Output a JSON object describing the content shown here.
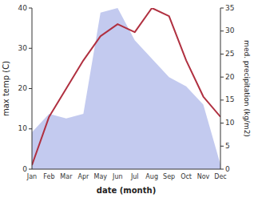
{
  "chart_data": {
    "type": "line",
    "categories": [
      "Jan",
      "Feb",
      "Mar",
      "Apr",
      "May",
      "Jun",
      "Jul",
      "Aug",
      "Sep",
      "Oct",
      "Nov",
      "Dec"
    ],
    "xlabel": "date (month)",
    "ylabel": "max temp (C)",
    "y2label": "med. precipitation (kg/m2)",
    "series": [
      {
        "type": "area",
        "axis": "y2",
        "color": "#aab4e8",
        "values": [
          8,
          12,
          11,
          12,
          34,
          35,
          28,
          24,
          20,
          18,
          14,
          1
        ]
      },
      {
        "type": "line",
        "color": "#b03040",
        "values": [
          1,
          13,
          20,
          27,
          33,
          36,
          34,
          40,
          38,
          27,
          18,
          13
        ]
      }
    ],
    "ylim": [
      0,
      40
    ],
    "yticks": [
      0,
      10,
      20,
      30,
      40
    ],
    "y2lim": [
      0,
      35
    ],
    "y2ticks": [
      0,
      5,
      10,
      15,
      20,
      25,
      30,
      35
    ],
    "grid": false
  }
}
